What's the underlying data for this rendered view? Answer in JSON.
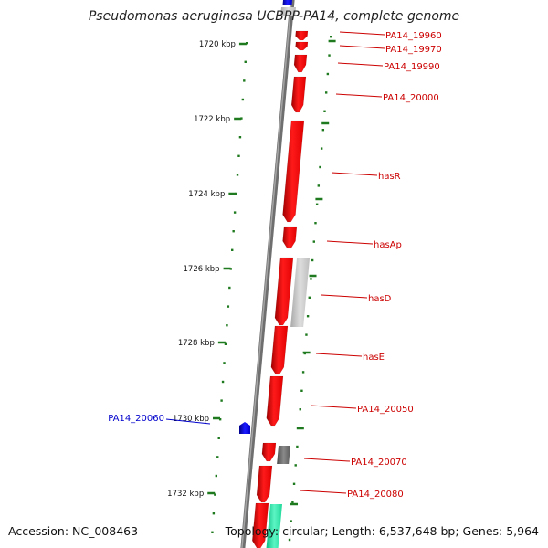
{
  "title": "Pseudomonas aeruginosa UCBPP-PA14, complete genome",
  "footer": {
    "accession": "Accession: NC_008463",
    "summary": "Topology: circular; Length: 6,537,648 bp; Genes: 5,964"
  },
  "colors": {
    "backbone": "#7a7a7a",
    "scale_ticks": "#1f7a1f",
    "gene_forward": "#ff0000",
    "gene_reverse_label": "#cc0000",
    "highlight_gene": "#0000cc",
    "pseudo_light": "#c8c8c8",
    "pseudo_dark": "#6e6e6e",
    "rna_teal": "#2ee8a8"
  },
  "scale_labels": [
    {
      "kbp": 1720,
      "label": "1720 kbp"
    },
    {
      "kbp": 1722,
      "label": "1722 kbp"
    },
    {
      "kbp": 1724,
      "label": "1724 kbp"
    },
    {
      "kbp": 1726,
      "label": "1726 kbp"
    },
    {
      "kbp": 1728,
      "label": "1728 kbp"
    },
    {
      "kbp": 1730,
      "label": "1730 kbp"
    },
    {
      "kbp": 1732,
      "label": "1732 kbp"
    }
  ],
  "gene_labels": [
    {
      "name": "PA14_19960",
      "kind": "forward"
    },
    {
      "name": "PA14_19970",
      "kind": "forward"
    },
    {
      "name": "PA14_19990",
      "kind": "forward"
    },
    {
      "name": "PA14_20000",
      "kind": "forward"
    },
    {
      "name": "hasR",
      "kind": "forward"
    },
    {
      "name": "hasAp",
      "kind": "forward"
    },
    {
      "name": "hasD",
      "kind": "forward"
    },
    {
      "name": "hasE",
      "kind": "forward"
    },
    {
      "name": "PA14_20050",
      "kind": "forward"
    },
    {
      "name": "PA14_20070",
      "kind": "forward"
    },
    {
      "name": "PA14_20080",
      "kind": "forward"
    },
    {
      "name": "PA14_20060",
      "kind": "highlight"
    }
  ]
}
